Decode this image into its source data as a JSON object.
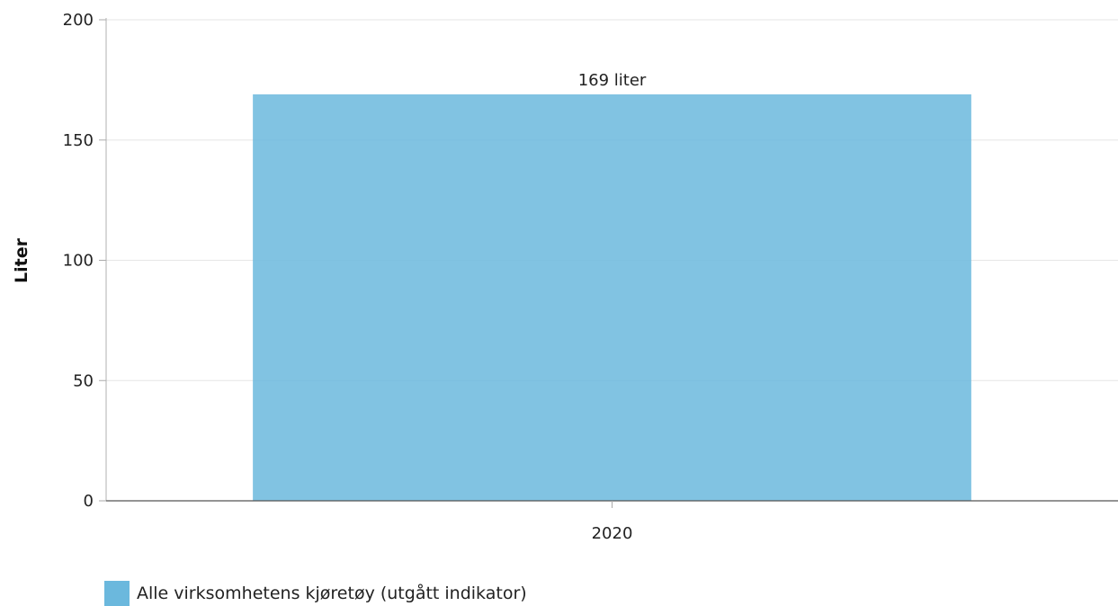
{
  "chart_data": {
    "type": "bar",
    "categories": [
      "2020"
    ],
    "series": [
      {
        "name": "Alle virksomhetens kjøretøy (utgått indikator)",
        "values": [
          169
        ],
        "data_labels": [
          "169 liter"
        ],
        "color": "#6bb8dd"
      }
    ],
    "ylabel": "Liter",
    "xlabel": "",
    "ylim": [
      0,
      200
    ],
    "yticks": [
      0,
      50,
      100,
      150,
      200
    ],
    "grid": true,
    "legend_position": "bottom-left"
  }
}
